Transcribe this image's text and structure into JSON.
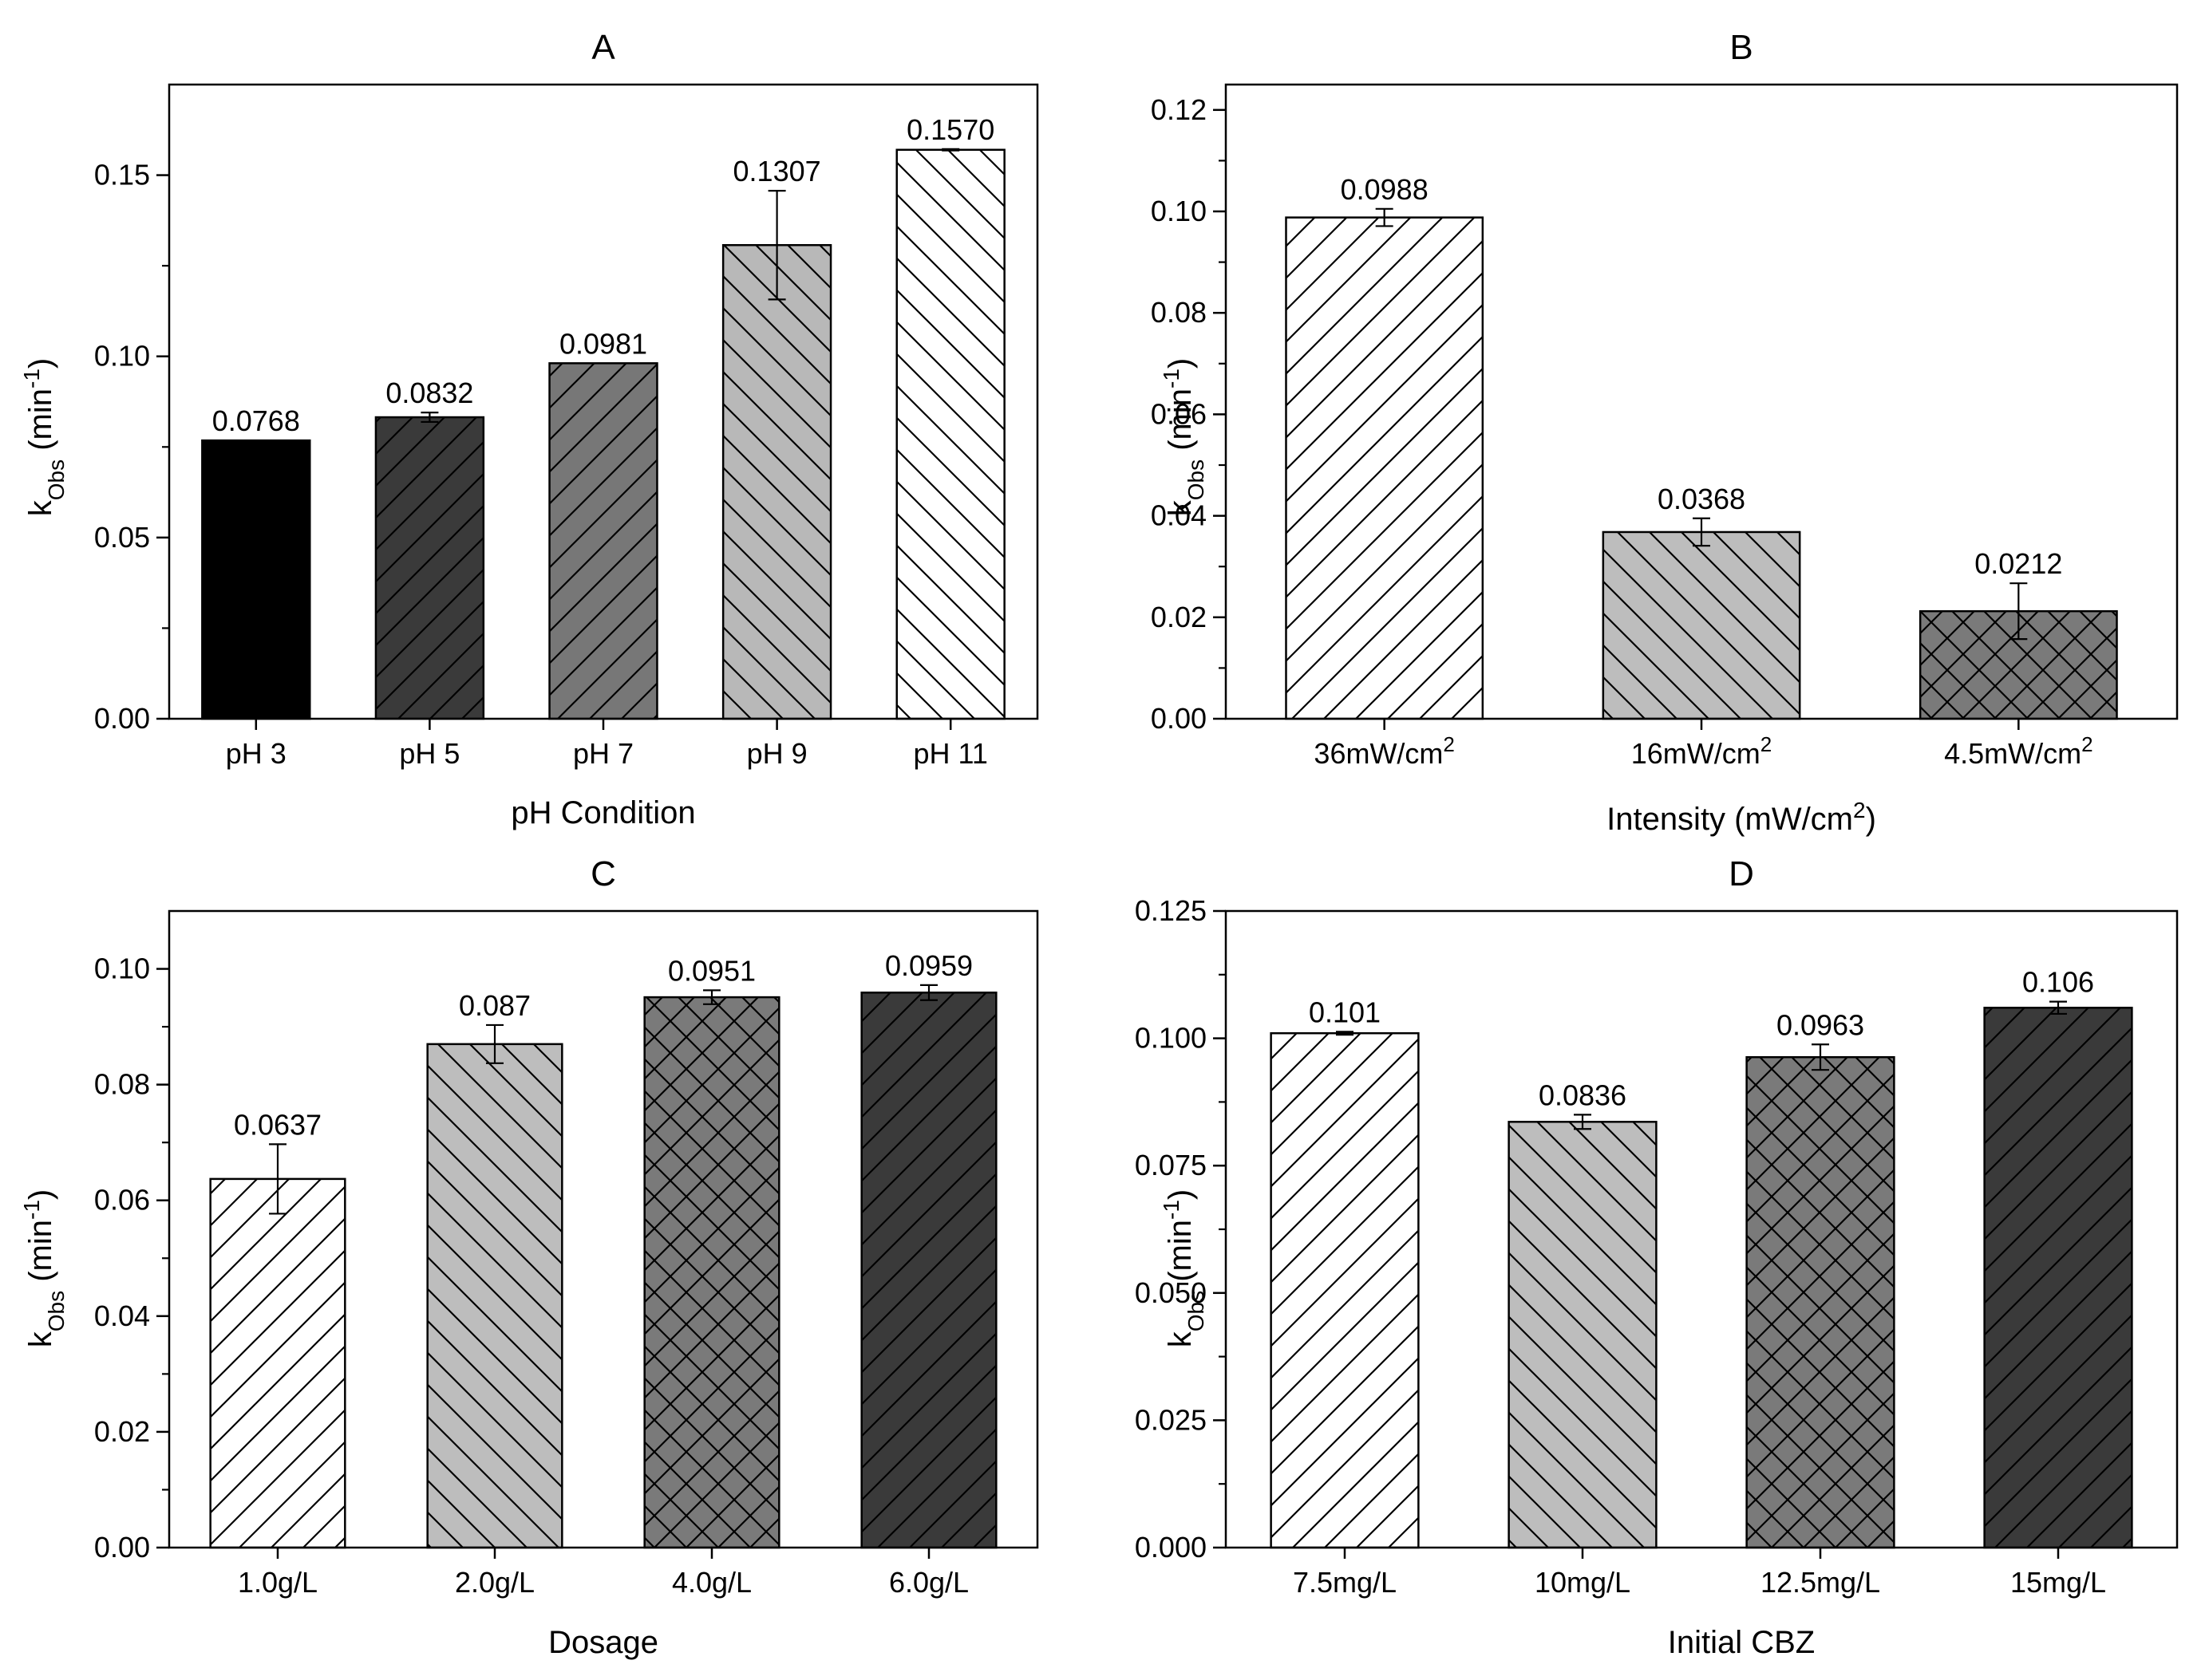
{
  "chart_data": [
    {
      "type": "bar",
      "title": "A",
      "xlabel": "pH Condition",
      "ylabel": "k",
      "ylabel_sub": "Obs",
      "ylabel_unit": " (min",
      "ylabel_sup": "-1",
      "ylabel_close": ")",
      "ylim": [
        0,
        0.175
      ],
      "yticks": [
        0.0,
        0.05,
        0.1,
        0.15
      ],
      "ytick_labels": [
        "0.00",
        "0.05",
        "0.10",
        "0.15"
      ],
      "categories": [
        "pH 3",
        "pH 5",
        "pH 7",
        "pH 9",
        "pH 11"
      ],
      "values": [
        0.0768,
        0.0832,
        0.0981,
        0.1307,
        0.157
      ],
      "value_labels": [
        "0.0768",
        "0.0832",
        "0.0981",
        "0.1307",
        "0.1570"
      ],
      "errors": [
        0.0,
        0.0013,
        0.0,
        0.015,
        0.0002
      ],
      "fills": [
        "#000000",
        "#3a3a3a",
        "#777777",
        "#b8b8b8",
        "#ffffff"
      ],
      "patterns": [
        "none",
        "fwd",
        "fwd",
        "back",
        "back"
      ]
    },
    {
      "type": "bar",
      "title": "B",
      "xlabel": "Intensity (mW/cm",
      "xlabel_sup": "2",
      "xlabel_close": ")",
      "ylabel": "k",
      "ylabel_sub": "Obs",
      "ylabel_unit": " (min",
      "ylabel_sup": "-1",
      "ylabel_close": ")",
      "ylim": [
        0,
        0.125
      ],
      "yticks": [
        0.0,
        0.02,
        0.04,
        0.06,
        0.08,
        0.1,
        0.12
      ],
      "ytick_labels": [
        "0.00",
        "0.02",
        "0.04",
        "0.06",
        "0.08",
        "0.10",
        "0.12"
      ],
      "categories": [
        "36mW/cm",
        "16mW/cm",
        "4.5mW/cm"
      ],
      "category_sup": "2",
      "values": [
        0.0988,
        0.0368,
        0.0212
      ],
      "value_labels": [
        "0.0988",
        "0.0368",
        "0.0212"
      ],
      "errors": [
        0.0017,
        0.0027,
        0.0055
      ],
      "fills": [
        "#ffffff",
        "#bdbdbd",
        "#7a7a7a"
      ],
      "patterns": [
        "fwd",
        "back",
        "cross"
      ]
    },
    {
      "type": "bar",
      "title": "C",
      "xlabel": "Dosage",
      "ylabel": "k",
      "ylabel_sub": "Obs",
      "ylabel_unit": " (min",
      "ylabel_sup": "-1",
      "ylabel_close": ")",
      "ylim": [
        0,
        0.11
      ],
      "yticks": [
        0.0,
        0.02,
        0.04,
        0.06,
        0.08,
        0.1
      ],
      "ytick_labels": [
        "0.00",
        "0.02",
        "0.04",
        "0.06",
        "0.08",
        "0.10"
      ],
      "categories": [
        "1.0g/L",
        "2.0g/L",
        "4.0g/L",
        "6.0g/L"
      ],
      "values": [
        0.0637,
        0.087,
        0.0951,
        0.0959
      ],
      "value_labels": [
        "0.0637",
        "0.087",
        "0.0951",
        "0.0959"
      ],
      "errors": [
        0.006,
        0.0033,
        0.0012,
        0.0013
      ],
      "fills": [
        "#ffffff",
        "#bdbdbd",
        "#7a7a7a",
        "#3a3a3a"
      ],
      "patterns": [
        "fwd",
        "back",
        "cross",
        "fwd"
      ]
    },
    {
      "type": "bar",
      "title": "D",
      "xlabel": "Initial CBZ",
      "ylabel": "k",
      "ylabel_sub": "Obs",
      "ylabel_unit": " (min",
      "ylabel_sup": "-1",
      "ylabel_close": ")",
      "ylim": [
        0,
        0.125
      ],
      "yticks": [
        0.0,
        0.025,
        0.05,
        0.075,
        0.1,
        0.125
      ],
      "ytick_labels": [
        "0.000",
        "0.025",
        "0.050",
        "0.075",
        "0.100",
        "0.125"
      ],
      "categories": [
        "7.5mg/L",
        "10mg/L",
        "12.5mg/L",
        "15mg/L"
      ],
      "values": [
        0.101,
        0.0836,
        0.0963,
        0.106
      ],
      "value_labels": [
        "0.101",
        "0.0836",
        "0.0963",
        "0.106"
      ],
      "errors": [
        0.0003,
        0.0014,
        0.0025,
        0.0012
      ],
      "fills": [
        "#ffffff",
        "#bdbdbd",
        "#7a7a7a",
        "#3a3a3a"
      ],
      "patterns": [
        "fwd",
        "back",
        "cross",
        "fwd"
      ]
    }
  ]
}
